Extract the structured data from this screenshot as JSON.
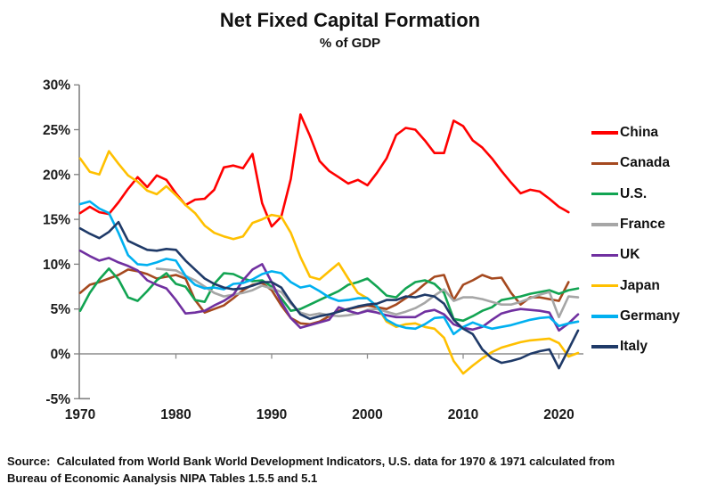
{
  "title": "Net Fixed Capital Formation",
  "subtitle": "% of GDP",
  "source_line1": "Source:  Calculated from World Bank World Development Indicators, U.S. data for 1970 & 1971 calculated from",
  "source_line2": "Bureau of Economic Aanalysis NIPA Tables 1.5.5 and 5.1",
  "chart_data": {
    "type": "line",
    "title": "Net Fixed Capital Formation",
    "subtitle": "% of GDP",
    "xlabel": "",
    "ylabel": "% of GDP",
    "x_range": [
      1970,
      2022
    ],
    "ylim": [
      -5,
      30
    ],
    "grid": false,
    "legend_position": "right",
    "y_ticks": [
      {
        "v": 30,
        "label": "30%"
      },
      {
        "v": 25,
        "label": "25%"
      },
      {
        "v": 20,
        "label": "20%"
      },
      {
        "v": 15,
        "label": "15%"
      },
      {
        "v": 10,
        "label": "10%"
      },
      {
        "v": 5,
        "label": "5%"
      },
      {
        "v": 0,
        "label": "0%"
      },
      {
        "v": -5,
        "label": "-5%"
      }
    ],
    "x_ticks": [
      {
        "year": 1970,
        "label": "1970"
      },
      {
        "year": 1980,
        "label": "1980"
      },
      {
        "year": 1990,
        "label": "1990"
      },
      {
        "year": 2000,
        "label": "2000"
      },
      {
        "year": 2010,
        "label": "2010"
      },
      {
        "year": 2020,
        "label": "2020"
      }
    ],
    "series": [
      {
        "name": "China",
        "color": "#FF0000",
        "start_year": 1970,
        "values": [
          15.7,
          16.4,
          15.8,
          15.6,
          16.9,
          18.4,
          19.7,
          18.6,
          19.9,
          19.4,
          17.9,
          16.6,
          17.2,
          17.3,
          18.3,
          20.8,
          21.0,
          20.7,
          22.3,
          16.8,
          14.2,
          15.3,
          19.5,
          26.7,
          24.3,
          21.5,
          20.4,
          19.7,
          19.0,
          19.4,
          18.8,
          20.2,
          21.8,
          24.4,
          25.2,
          25.0,
          23.8,
          22.4,
          22.4,
          26.0,
          25.4,
          23.8,
          23.0,
          21.8,
          20.4,
          19.1,
          17.9,
          18.3,
          18.1,
          17.3,
          16.4,
          15.8
        ]
      },
      {
        "name": "Canada",
        "color": "#A5491F",
        "start_year": 1970,
        "values": [
          6.8,
          7.7,
          8.0,
          8.4,
          8.8,
          9.4,
          9.2,
          8.9,
          8.4,
          8.6,
          8.8,
          8.4,
          6.0,
          4.6,
          5.0,
          5.4,
          6.2,
          7.1,
          7.7,
          7.9,
          7.1,
          5.4,
          4.0,
          3.4,
          3.3,
          3.6,
          4.2,
          4.8,
          5.0,
          5.2,
          5.4,
          5.2,
          5.0,
          5.5,
          6.2,
          6.9,
          7.8,
          8.6,
          8.8,
          6.0,
          7.7,
          8.2,
          8.8,
          8.4,
          8.5,
          6.8,
          5.5,
          6.3,
          6.3,
          6.1,
          5.9,
          8.0
        ]
      },
      {
        "name": "U.S.",
        "color": "#12A452",
        "start_year": 1970,
        "values": [
          4.8,
          6.8,
          8.3,
          9.5,
          8.3,
          6.3,
          5.9,
          7.0,
          8.2,
          9.0,
          7.8,
          7.5,
          6.0,
          5.8,
          7.8,
          9.0,
          8.9,
          8.4,
          8.1,
          8.2,
          7.5,
          6.2,
          4.8,
          5.0,
          5.5,
          6.0,
          6.5,
          7.0,
          7.7,
          8.0,
          8.4,
          7.5,
          6.5,
          6.3,
          7.3,
          8.0,
          8.2,
          7.8,
          6.8,
          3.9,
          3.7,
          4.2,
          4.8,
          5.2,
          6.0,
          6.2,
          6.4,
          6.7,
          6.9,
          7.1,
          6.7,
          7.1,
          7.3
        ]
      },
      {
        "name": "France",
        "color": "#A6A6A6",
        "start_year": 1978,
        "values": [
          9.5,
          9.4,
          9.3,
          8.7,
          8.2,
          7.5,
          6.8,
          6.4,
          6.6,
          6.8,
          7.1,
          7.6,
          7.3,
          6.9,
          5.6,
          4.6,
          4.3,
          4.5,
          4.3,
          4.2,
          4.3,
          4.5,
          4.9,
          5.0,
          4.7,
          4.4,
          4.7,
          5.1,
          5.7,
          6.5,
          7.2,
          5.9,
          6.3,
          6.3,
          6.1,
          5.8,
          5.5,
          5.5,
          5.8,
          6.2,
          6.6,
          6.9,
          4.1,
          6.4,
          6.3
        ]
      },
      {
        "name": "UK",
        "color": "#7030A0",
        "start_year": 1970,
        "values": [
          11.5,
          10.9,
          10.4,
          10.7,
          10.2,
          9.8,
          9.3,
          8.2,
          7.7,
          7.3,
          6.0,
          4.5,
          4.6,
          4.8,
          5.4,
          5.9,
          6.6,
          8.2,
          9.4,
          10.0,
          8.0,
          5.8,
          4.0,
          2.9,
          3.2,
          3.5,
          3.8,
          5.2,
          4.8,
          4.5,
          4.8,
          4.6,
          4.3,
          4.1,
          4.1,
          4.1,
          4.7,
          4.9,
          4.4,
          3.3,
          2.9,
          2.7,
          3.0,
          3.8,
          4.5,
          4.8,
          5.0,
          4.9,
          4.8,
          4.6,
          2.6,
          3.4,
          4.4
        ]
      },
      {
        "name": "Japan",
        "color": "#FFC000",
        "start_year": 1970,
        "values": [
          21.8,
          20.3,
          20.0,
          22.6,
          21.2,
          19.9,
          19.2,
          18.2,
          17.8,
          18.7,
          17.7,
          16.6,
          15.7,
          14.3,
          13.5,
          13.1,
          12.8,
          13.1,
          14.6,
          15.0,
          15.5,
          15.3,
          13.5,
          10.8,
          8.6,
          8.3,
          9.2,
          10.1,
          8.4,
          6.8,
          6.2,
          5.3,
          3.6,
          3.0,
          3.3,
          3.4,
          3.0,
          2.8,
          1.8,
          -0.8,
          -2.2,
          -1.3,
          -0.5,
          0.2,
          0.7,
          1.0,
          1.3,
          1.5,
          1.6,
          1.7,
          1.2,
          -0.3,
          0.1
        ]
      },
      {
        "name": "Germany",
        "color": "#00B0F0",
        "start_year": 1970,
        "values": [
          16.7,
          17.0,
          16.2,
          15.7,
          13.5,
          11.0,
          10.0,
          9.9,
          10.2,
          10.6,
          10.4,
          8.7,
          7.7,
          7.3,
          7.4,
          7.2,
          7.8,
          7.9,
          8.3,
          8.9,
          9.2,
          9.0,
          8.0,
          7.4,
          7.6,
          7.0,
          6.3,
          5.9,
          6.0,
          6.2,
          6.2,
          5.3,
          3.8,
          3.2,
          2.9,
          2.8,
          3.3,
          4.0,
          4.1,
          2.2,
          3.0,
          3.5,
          3.1,
          2.8,
          3.0,
          3.2,
          3.5,
          3.8,
          4.0,
          4.1,
          3.1,
          3.4,
          3.6
        ]
      },
      {
        "name": "Italy",
        "color": "#1F3A68",
        "start_year": 1970,
        "values": [
          14.0,
          13.4,
          12.9,
          13.6,
          14.7,
          12.6,
          12.1,
          11.6,
          11.5,
          11.7,
          11.6,
          10.4,
          9.4,
          8.4,
          7.8,
          7.4,
          7.2,
          7.3,
          7.6,
          8.0,
          8.0,
          7.4,
          5.8,
          4.4,
          3.9,
          4.2,
          4.4,
          4.7,
          5.0,
          5.3,
          5.5,
          5.6,
          6.0,
          6.0,
          6.4,
          6.3,
          6.6,
          6.4,
          5.6,
          3.8,
          2.8,
          2.2,
          0.5,
          -0.5,
          -1.0,
          -0.8,
          -0.5,
          0.0,
          0.3,
          0.5,
          -1.6,
          0.5,
          2.6
        ]
      }
    ]
  }
}
